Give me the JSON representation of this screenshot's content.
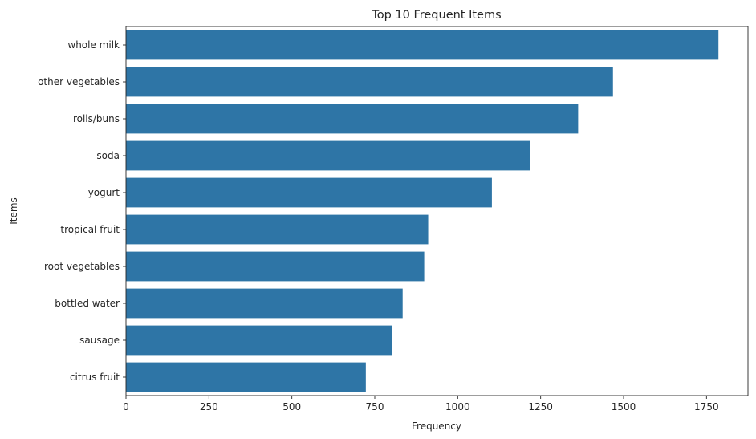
{
  "chart_data": {
    "type": "bar",
    "orientation": "horizontal",
    "title": "Top 10 Frequent Items",
    "xlabel": "Frequency",
    "ylabel": "Items",
    "categories": [
      "whole milk",
      "other vegetables",
      "rolls/buns",
      "soda",
      "yogurt",
      "tropical fruit",
      "root vegetables",
      "bottled water",
      "sausage",
      "citrus fruit"
    ],
    "values": [
      1786,
      1468,
      1363,
      1219,
      1103,
      911,
      899,
      834,
      803,
      723
    ],
    "xlim": [
      0,
      1875
    ],
    "xticks": [
      0,
      250,
      500,
      750,
      1000,
      1250,
      1500,
      1750
    ],
    "grid": false,
    "bar_color": "#2e75a6"
  }
}
